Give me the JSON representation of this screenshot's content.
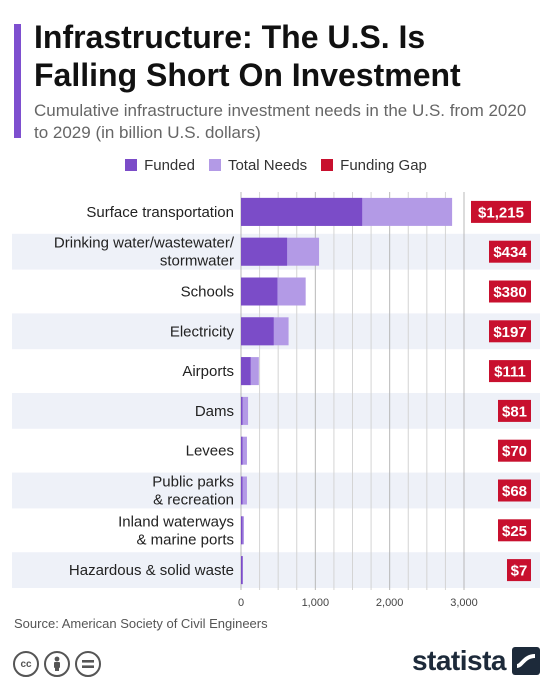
{
  "title": "Infrastructure: The U.S. Is Falling Short On Investment",
  "subtitle": "Cumulative infrastructure investment needs in the U.S. from 2020 to 2029 (in billion U.S. dollars)",
  "source": "Source: American Society of Civil Engineers",
  "brand": "statista",
  "license_icons": [
    "cc-icon",
    "by-icon",
    "nd-icon"
  ],
  "colors": {
    "accent": "#7e4fcf",
    "funded": "#7b4cc8",
    "total_needs": "#b39ae6",
    "funding_gap": "#c8102e",
    "row_band": "#eef1f8"
  },
  "chart_data": {
    "type": "bar",
    "orientation": "horizontal",
    "categories": [
      "Surface transportation",
      "Drinking water/wastewater/ stormwater",
      "Schools",
      "Electricity",
      "Airports",
      "Dams",
      "Levees",
      "Public parks & recreation",
      "Inland waterways & marine ports",
      "Hazardous & solid waste"
    ],
    "series": [
      {
        "name": "Funded",
        "values": [
          1630,
          620,
          490,
          440,
          130,
          5,
          2,
          20,
          20,
          1
        ]
      },
      {
        "name": "Total Needs",
        "values": [
          2840,
          1050,
          870,
          640,
          240,
          95,
          80,
          80,
          40,
          10
        ]
      },
      {
        "name": "Funding Gap",
        "values": [
          1215,
          434,
          380,
          197,
          111,
          81,
          70,
          68,
          25,
          7
        ]
      }
    ],
    "gap_labels": [
      "$1,215",
      "$434",
      "$380",
      "$197",
      "$111",
      "$81",
      "$70",
      "$68",
      "$25",
      "$7"
    ],
    "x_ticks": [
      0,
      1000,
      2000,
      3000
    ],
    "x_tick_labels": [
      "0",
      "1,000",
      "2,000",
      "3,000"
    ],
    "xlim": [
      0,
      3000
    ],
    "grid": true,
    "legend_position": "top"
  }
}
